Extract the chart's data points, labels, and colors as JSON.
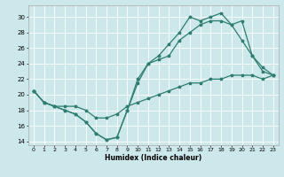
{
  "xlabel": "Humidex (Indice chaleur)",
  "background_color": "#cde8ea",
  "grid_color": "#ffffff",
  "line_color": "#2e7d6e",
  "xlim": [
    -0.5,
    23.5
  ],
  "ylim": [
    13.5,
    31.5
  ],
  "xticks": [
    0,
    1,
    2,
    3,
    4,
    5,
    6,
    7,
    8,
    9,
    10,
    11,
    12,
    13,
    14,
    15,
    16,
    17,
    18,
    19,
    20,
    21,
    22,
    23
  ],
  "yticks": [
    14,
    16,
    18,
    20,
    22,
    24,
    26,
    28,
    30
  ],
  "line1_x": [
    0,
    1,
    2,
    3,
    4,
    5,
    6,
    7,
    8,
    9,
    10,
    11,
    12,
    13,
    14,
    15,
    16,
    17,
    18,
    19,
    20,
    21,
    22,
    23
  ],
  "line1_y": [
    20.5,
    19,
    18.5,
    18,
    17.5,
    16.5,
    15,
    14.2,
    14.5,
    18,
    21.5,
    24,
    25,
    26.5,
    28,
    30,
    29.5,
    30,
    30.5,
    29,
    27,
    25,
    23,
    22.5
  ],
  "line2_x": [
    0,
    1,
    2,
    3,
    4,
    5,
    6,
    7,
    8,
    9,
    10,
    11,
    12,
    13,
    14,
    15,
    16,
    17,
    18,
    19,
    20,
    21,
    22,
    23
  ],
  "line2_y": [
    20.5,
    19,
    18.5,
    18,
    17.5,
    16.5,
    15,
    14.2,
    14.5,
    18,
    22,
    24,
    24.5,
    25,
    27,
    28,
    29,
    29.5,
    29.5,
    29,
    29.5,
    25,
    23.5,
    22.5
  ],
  "line3_x": [
    0,
    1,
    2,
    3,
    4,
    5,
    6,
    7,
    8,
    9,
    10,
    11,
    12,
    13,
    14,
    15,
    16,
    17,
    18,
    19,
    20,
    21,
    22,
    23
  ],
  "line3_y": [
    20.5,
    19,
    18.5,
    18.5,
    18.5,
    18,
    17,
    17,
    17.5,
    18.5,
    19,
    19.5,
    20,
    20.5,
    21,
    21.5,
    21.5,
    22,
    22,
    22.5,
    22.5,
    22.5,
    22,
    22.5
  ]
}
